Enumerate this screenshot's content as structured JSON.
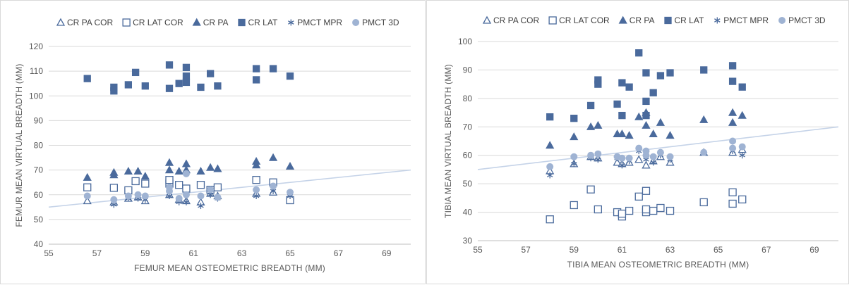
{
  "colors": {
    "series": "#4a6a9c",
    "light": "#9fb3d3",
    "trend": "#c5d3e8",
    "grid": "#d9d9d9"
  },
  "chart_data": [
    {
      "type": "scatter",
      "xlabel": "FEMUR MEAN OSTEOMETRIC BREADTH (MM)",
      "ylabel": "FEMUR MEAN VIRTUAL BREADTH (MM)",
      "xlim": [
        55,
        70
      ],
      "ylim": [
        40,
        120
      ],
      "x_ticks": [
        "55",
        "57",
        "59",
        "61",
        "63",
        "65",
        "67",
        "69"
      ],
      "y_ticks": [
        "40",
        "50",
        "60",
        "70",
        "80",
        "90",
        "100",
        "110",
        "120"
      ],
      "grid": true,
      "legend_position": "top",
      "trendline": [
        [
          55,
          55
        ],
        [
          70,
          70
        ]
      ],
      "series": [
        {
          "name": "CR PA COR",
          "marker": "triangle-open",
          "points": [
            [
              56.6,
              57.5
            ],
            [
              57.7,
              57
            ],
            [
              58.3,
              58.5
            ],
            [
              58.7,
              59
            ],
            [
              59,
              57.5
            ],
            [
              60,
              60
            ],
            [
              60.4,
              58
            ],
            [
              60.7,
              57.5
            ],
            [
              61.3,
              57
            ],
            [
              61.7,
              60.5
            ],
            [
              62,
              59.5
            ],
            [
              63.6,
              60.5
            ],
            [
              64.3,
              61
            ],
            [
              65,
              59.5
            ]
          ]
        },
        {
          "name": "CR LAT COR",
          "marker": "square-open",
          "points": [
            [
              56.6,
              63
            ],
            [
              57.7,
              62.8
            ],
            [
              58.3,
              61.8
            ],
            [
              58.6,
              65.5
            ],
            [
              59,
              64.5
            ],
            [
              60,
              64.5
            ],
            [
              60,
              66
            ],
            [
              60.4,
              64
            ],
            [
              60.7,
              62.5
            ],
            [
              61.3,
              64
            ],
            [
              61.7,
              62
            ],
            [
              62,
              63
            ],
            [
              63.6,
              66
            ],
            [
              64.3,
              65
            ],
            [
              65,
              57.8
            ]
          ]
        },
        {
          "name": "CR PA",
          "marker": "triangle",
          "points": [
            [
              56.6,
              67
            ],
            [
              57.7,
              68
            ],
            [
              57.7,
              69
            ],
            [
              58.3,
              69.5
            ],
            [
              58.7,
              69.5
            ],
            [
              59,
              67.5
            ],
            [
              60,
              73
            ],
            [
              60,
              70
            ],
            [
              60.4,
              69.5
            ],
            [
              60.7,
              72.5
            ],
            [
              60.7,
              70
            ],
            [
              61.3,
              69.5
            ],
            [
              61.7,
              71
            ],
            [
              62,
              70.5
            ],
            [
              63.6,
              73.5
            ],
            [
              63.6,
              72
            ],
            [
              64.3,
              75
            ],
            [
              65,
              71.5
            ]
          ]
        },
        {
          "name": "CR LAT",
          "marker": "square",
          "points": [
            [
              56.6,
              107
            ],
            [
              57.7,
              103.5
            ],
            [
              57.7,
              102
            ],
            [
              58.3,
              104.5
            ],
            [
              58.6,
              109.5
            ],
            [
              59,
              104
            ],
            [
              60,
              112.5
            ],
            [
              60,
              103
            ],
            [
              60.4,
              105
            ],
            [
              60.7,
              111.5
            ],
            [
              60.7,
              108
            ],
            [
              60.7,
              105.5
            ],
            [
              61.3,
              103.5
            ],
            [
              61.7,
              109
            ],
            [
              62,
              104
            ],
            [
              63.6,
              111
            ],
            [
              63.6,
              106.5
            ],
            [
              64.3,
              111
            ],
            [
              65,
              108
            ]
          ]
        },
        {
          "name": "PMCT MPR",
          "marker": "asterisk",
          "points": [
            [
              57.7,
              56
            ],
            [
              58.3,
              58.5
            ],
            [
              58.7,
              58.5
            ],
            [
              59,
              58
            ],
            [
              60,
              59.5
            ],
            [
              60.4,
              57
            ],
            [
              60.7,
              57
            ],
            [
              61.3,
              55.5
            ],
            [
              61.7,
              60
            ],
            [
              62,
              58.5
            ],
            [
              63.6,
              59.5
            ],
            [
              64.3,
              61.5
            ],
            [
              65,
              59.5
            ]
          ]
        },
        {
          "name": "PMCT 3D",
          "marker": "circle",
          "points": [
            [
              56.6,
              59.5
            ],
            [
              57.7,
              58
            ],
            [
              58.3,
              59.5
            ],
            [
              58.7,
              60
            ],
            [
              59,
              59.5
            ],
            [
              60,
              61.5
            ],
            [
              60,
              63
            ],
            [
              60.4,
              58.5
            ],
            [
              60.7,
              60
            ],
            [
              60.7,
              68.5
            ],
            [
              61.3,
              59.5
            ],
            [
              61.7,
              62
            ],
            [
              62,
              59
            ],
            [
              63.6,
              62
            ],
            [
              64.3,
              63.5
            ],
            [
              65,
              61
            ]
          ]
        }
      ]
    },
    {
      "type": "scatter",
      "xlabel": "TIBIA MEAN OSTEOMETRIC BREADTH (MM)",
      "ylabel": "TIBIA MEAN VIRTUAL BREADTH (MM)",
      "xlim": [
        55,
        70
      ],
      "ylim": [
        30,
        100
      ],
      "x_ticks": [
        "55",
        "57",
        "59",
        "61",
        "63",
        "65",
        "67",
        "69"
      ],
      "y_ticks": [
        "30",
        "40",
        "50",
        "60",
        "70",
        "80",
        "90",
        "100"
      ],
      "grid": true,
      "legend_position": "top",
      "trendline": [
        [
          55,
          55
        ],
        [
          70,
          70
        ]
      ],
      "series": [
        {
          "name": "CR PA COR",
          "marker": "triangle-open",
          "points": [
            [
              58,
              54.5
            ],
            [
              59,
              57
            ],
            [
              59.7,
              59.5
            ],
            [
              60,
              59
            ],
            [
              60.8,
              57.5
            ],
            [
              61,
              57
            ],
            [
              61.3,
              57.5
            ],
            [
              61.7,
              58.5
            ],
            [
              62,
              56.5
            ],
            [
              62.3,
              58
            ],
            [
              62.6,
              59.5
            ],
            [
              63,
              57.5
            ],
            [
              64.4,
              61
            ],
            [
              65.6,
              61
            ],
            [
              66,
              62
            ]
          ]
        },
        {
          "name": "CR LAT COR",
          "marker": "square-open",
          "points": [
            [
              58,
              37.5
            ],
            [
              59,
              42.5
            ],
            [
              59.7,
              48
            ],
            [
              60,
              41
            ],
            [
              60.8,
              40
            ],
            [
              61,
              38.5
            ],
            [
              61,
              39.5
            ],
            [
              61.3,
              40.5
            ],
            [
              61.7,
              45.5
            ],
            [
              62,
              47.5
            ],
            [
              62,
              40
            ],
            [
              62,
              41
            ],
            [
              62.3,
              40.5
            ],
            [
              62.6,
              41.5
            ],
            [
              63,
              40.5
            ],
            [
              64.4,
              43.5
            ],
            [
              65.6,
              47
            ],
            [
              65.6,
              43
            ],
            [
              66,
              44.5
            ]
          ]
        },
        {
          "name": "CR PA",
          "marker": "triangle",
          "points": [
            [
              58,
              63.5
            ],
            [
              59,
              66.5
            ],
            [
              59.7,
              70
            ],
            [
              60,
              70.5
            ],
            [
              60.8,
              67.5
            ],
            [
              61,
              67.5
            ],
            [
              61.3,
              67
            ],
            [
              61.7,
              73.5
            ],
            [
              62,
              75
            ],
            [
              62,
              70.5
            ],
            [
              62.3,
              67.5
            ],
            [
              62.6,
              71.5
            ],
            [
              63,
              67
            ],
            [
              64.4,
              72.5
            ],
            [
              65.6,
              75
            ],
            [
              65.6,
              71.5
            ],
            [
              66,
              74
            ]
          ]
        },
        {
          "name": "CR LAT",
          "marker": "square",
          "points": [
            [
              58,
              73.5
            ],
            [
              59,
              73
            ],
            [
              59.7,
              77.5
            ],
            [
              60,
              86.5
            ],
            [
              60,
              85
            ],
            [
              60.8,
              78
            ],
            [
              61,
              85.5
            ],
            [
              61,
              74
            ],
            [
              61.3,
              84
            ],
            [
              61.7,
              96
            ],
            [
              62,
              89
            ],
            [
              62,
              79
            ],
            [
              62,
              74
            ],
            [
              62.3,
              82
            ],
            [
              62.6,
              88
            ],
            [
              63,
              89
            ],
            [
              64.4,
              90
            ],
            [
              65.6,
              91.5
            ],
            [
              65.6,
              86
            ],
            [
              66,
              84
            ]
          ]
        },
        {
          "name": "PMCT MPR",
          "marker": "asterisk",
          "points": [
            [
              58,
              53
            ],
            [
              59,
              57
            ],
            [
              59.7,
              59
            ],
            [
              60,
              58.5
            ],
            [
              60.8,
              59
            ],
            [
              61,
              56.5
            ],
            [
              61.3,
              58
            ],
            [
              61.7,
              61.5
            ],
            [
              62,
              58.5
            ],
            [
              62.3,
              57.5
            ],
            [
              62.6,
              60
            ],
            [
              63,
              58.5
            ],
            [
              64.4,
              61
            ],
            [
              65.6,
              61.5
            ],
            [
              66,
              60
            ]
          ]
        },
        {
          "name": "PMCT 3D",
          "marker": "circle",
          "points": [
            [
              58,
              56
            ],
            [
              59,
              59.5
            ],
            [
              59.7,
              60
            ],
            [
              60,
              60.5
            ],
            [
              60.8,
              59.5
            ],
            [
              61,
              59
            ],
            [
              61.3,
              59
            ],
            [
              61.7,
              62.5
            ],
            [
              62,
              61.5
            ],
            [
              62,
              60
            ],
            [
              62.3,
              59.5
            ],
            [
              62.6,
              61
            ],
            [
              63,
              59.5
            ],
            [
              64.4,
              61
            ],
            [
              65.6,
              65
            ],
            [
              65.6,
              62.5
            ],
            [
              66,
              63
            ]
          ]
        }
      ]
    }
  ]
}
